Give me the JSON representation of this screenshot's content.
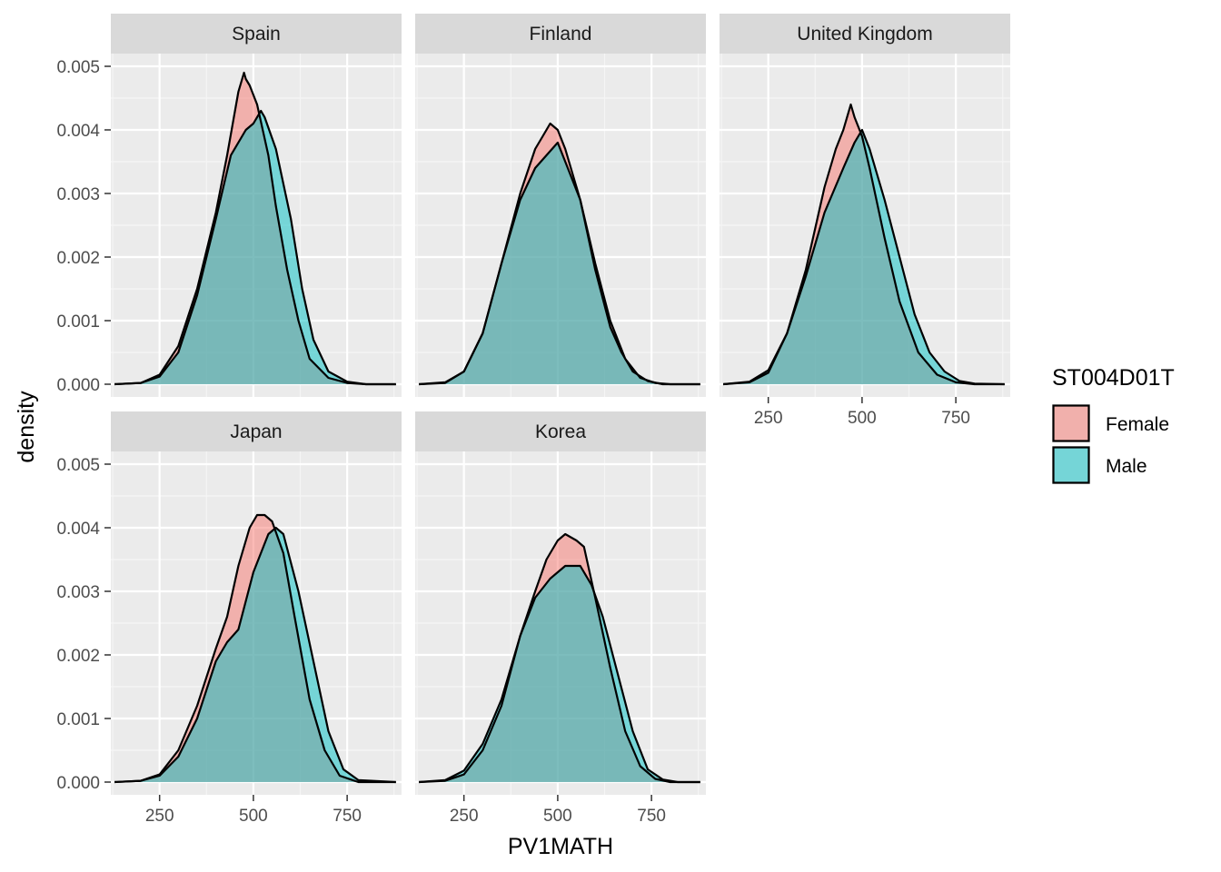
{
  "chart_data": {
    "type": "area",
    "xlabel": "PV1MATH",
    "ylabel": "density",
    "xlim": [
      120,
      895
    ],
    "ylim": [
      -0.0002,
      0.0052
    ],
    "x_ticks": [
      250,
      500,
      750
    ],
    "x_tick_labels": [
      "250",
      "500",
      "750"
    ],
    "y_ticks": [
      0.0,
      0.001,
      0.002,
      0.003,
      0.004,
      0.005
    ],
    "y_tick_labels": [
      "0.000",
      "0.001",
      "0.002",
      "0.003",
      "0.004",
      "0.005"
    ],
    "grid": true,
    "legend": {
      "title": "ST004D01T",
      "position": "right",
      "entries": [
        {
          "label": "Female",
          "color": "#F8766D"
        },
        {
          "label": "Male",
          "color": "#00BFC4"
        }
      ]
    },
    "panels": [
      {
        "name": "Spain",
        "series": [
          {
            "name": "Female",
            "x": [
              130,
              200,
              250,
              300,
              350,
              400,
              430,
              460,
              475,
              480,
              490,
              510,
              540,
              560,
              590,
              620,
              650,
              700,
              750,
              800,
              880
            ],
            "y": [
              0.0,
              2e-05,
              0.00015,
              0.0006,
              0.0015,
              0.0027,
              0.0036,
              0.0046,
              0.0049,
              0.0048,
              0.0047,
              0.0044,
              0.0036,
              0.0028,
              0.0018,
              0.001,
              0.0004,
              0.0001,
              2e-05,
              0.0,
              0.0
            ]
          },
          {
            "name": "Male",
            "x": [
              130,
              200,
              250,
              300,
              350,
              400,
              440,
              480,
              500,
              520,
              530,
              560,
              600,
              630,
              660,
              700,
              750,
              800,
              880
            ],
            "y": [
              0.0,
              2e-05,
              0.00012,
              0.0005,
              0.0014,
              0.0026,
              0.0036,
              0.004,
              0.0041,
              0.0043,
              0.0042,
              0.0037,
              0.0026,
              0.0015,
              0.0007,
              0.0002,
              4e-05,
              0.0,
              0.0
            ]
          }
        ]
      },
      {
        "name": "Finland",
        "series": [
          {
            "name": "Female",
            "x": [
              130,
              200,
              250,
              300,
              350,
              400,
              440,
              460,
              480,
              500,
              520,
              560,
              600,
              640,
              680,
              720,
              760,
              800,
              880
            ],
            "y": [
              0.0,
              2e-05,
              0.0002,
              0.0008,
              0.0019,
              0.003,
              0.0037,
              0.0039,
              0.0041,
              0.004,
              0.0037,
              0.0029,
              0.0019,
              0.001,
              0.0004,
              0.0001,
              2e-05,
              0.0,
              0.0
            ]
          },
          {
            "name": "Male",
            "x": [
              130,
              200,
              250,
              300,
              350,
              400,
              440,
              470,
              500,
              520,
              560,
              600,
              640,
              670,
              700,
              740,
              780,
              880
            ],
            "y": [
              0.0,
              3e-05,
              0.0002,
              0.0008,
              0.0019,
              0.0029,
              0.0034,
              0.0036,
              0.0038,
              0.0035,
              0.0029,
              0.0018,
              0.0009,
              0.0005,
              0.0002,
              5e-05,
              0.0,
              0.0
            ]
          }
        ]
      },
      {
        "name": "United Kingdom",
        "series": [
          {
            "name": "Female",
            "x": [
              130,
              200,
              250,
              300,
              350,
              400,
              430,
              450,
              470,
              480,
              500,
              520,
              560,
              600,
              650,
              700,
              750,
              800,
              880
            ],
            "y": [
              0.0,
              3e-05,
              0.00018,
              0.0008,
              0.0018,
              0.0031,
              0.0037,
              0.004,
              0.0044,
              0.0042,
              0.0039,
              0.0034,
              0.0023,
              0.0013,
              0.0005,
              0.00015,
              3e-05,
              0.0,
              0.0
            ]
          },
          {
            "name": "Male",
            "x": [
              130,
              200,
              250,
              300,
              350,
              400,
              450,
              480,
              500,
              520,
              560,
              600,
              640,
              680,
              720,
              760,
              800,
              880
            ],
            "y": [
              0.0,
              4e-05,
              0.00022,
              0.0008,
              0.0017,
              0.0027,
              0.0034,
              0.0038,
              0.004,
              0.0037,
              0.0029,
              0.002,
              0.0011,
              0.0005,
              0.0002,
              5e-05,
              1e-05,
              0.0
            ]
          }
        ]
      },
      {
        "name": "Japan",
        "series": [
          {
            "name": "Female",
            "x": [
              130,
              200,
              250,
              300,
              350,
              400,
              430,
              460,
              490,
              510,
              530,
              550,
              580,
              610,
              650,
              690,
              730,
              780,
              880
            ],
            "y": [
              0.0,
              2e-05,
              0.00012,
              0.0005,
              0.0012,
              0.0021,
              0.0026,
              0.0034,
              0.004,
              0.0042,
              0.0042,
              0.0041,
              0.0036,
              0.0026,
              0.0013,
              0.0005,
              0.0001,
              0.0,
              0.0
            ]
          },
          {
            "name": "Male",
            "x": [
              130,
              200,
              250,
              300,
              350,
              400,
              430,
              460,
              500,
              540,
              560,
              580,
              620,
              660,
              700,
              740,
              780,
              880
            ],
            "y": [
              0.0,
              2e-05,
              0.0001,
              0.0004,
              0.001,
              0.0019,
              0.0022,
              0.0024,
              0.0033,
              0.0039,
              0.004,
              0.0039,
              0.003,
              0.0019,
              0.0008,
              0.0002,
              3e-05,
              0.0
            ]
          }
        ]
      },
      {
        "name": "Korea",
        "series": [
          {
            "name": "Female",
            "x": [
              130,
              200,
              250,
              300,
              350,
              400,
              440,
              470,
              500,
              520,
              550,
              570,
              600,
              640,
              680,
              720,
              760,
              800,
              880
            ],
            "y": [
              0.0,
              2e-05,
              0.00012,
              0.0005,
              0.0012,
              0.0023,
              0.003,
              0.0035,
              0.0038,
              0.0039,
              0.0038,
              0.0037,
              0.0029,
              0.0018,
              0.0008,
              0.00025,
              5e-05,
              0.0,
              0.0
            ]
          },
          {
            "name": "Male",
            "x": [
              130,
              200,
              250,
              300,
              350,
              400,
              440,
              480,
              520,
              560,
              590,
              620,
              660,
              700,
              740,
              780,
              820,
              880
            ],
            "y": [
              0.0,
              3e-05,
              0.00018,
              0.0006,
              0.0013,
              0.0023,
              0.0029,
              0.0032,
              0.0034,
              0.0034,
              0.0031,
              0.0026,
              0.0017,
              0.0008,
              0.0002,
              4e-05,
              0.0,
              0.0
            ]
          }
        ]
      }
    ]
  }
}
